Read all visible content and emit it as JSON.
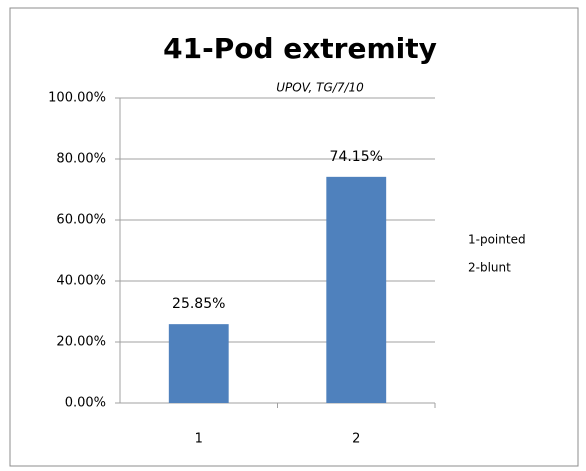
{
  "chart_data": {
    "type": "bar",
    "title": "41-Pod extremity",
    "subtitle": "UPOV, TG/7/10",
    "categories": [
      "1",
      "2"
    ],
    "values": [
      25.85,
      74.15
    ],
    "value_labels": [
      "25.85%",
      "74.15%"
    ],
    "color": "#4f81bd",
    "ylim": [
      0,
      100
    ],
    "yticks": [
      {
        "value": 0,
        "label": "0.00%"
      },
      {
        "value": 20,
        "label": "20.00%"
      },
      {
        "value": 40,
        "label": "40.00%"
      },
      {
        "value": 60,
        "label": "60.00%"
      },
      {
        "value": 80,
        "label": "80.00%"
      },
      {
        "value": 100,
        "label": "100.00%"
      }
    ],
    "grid": true,
    "annotations": [
      "1-pointed",
      "2-blunt"
    ]
  }
}
